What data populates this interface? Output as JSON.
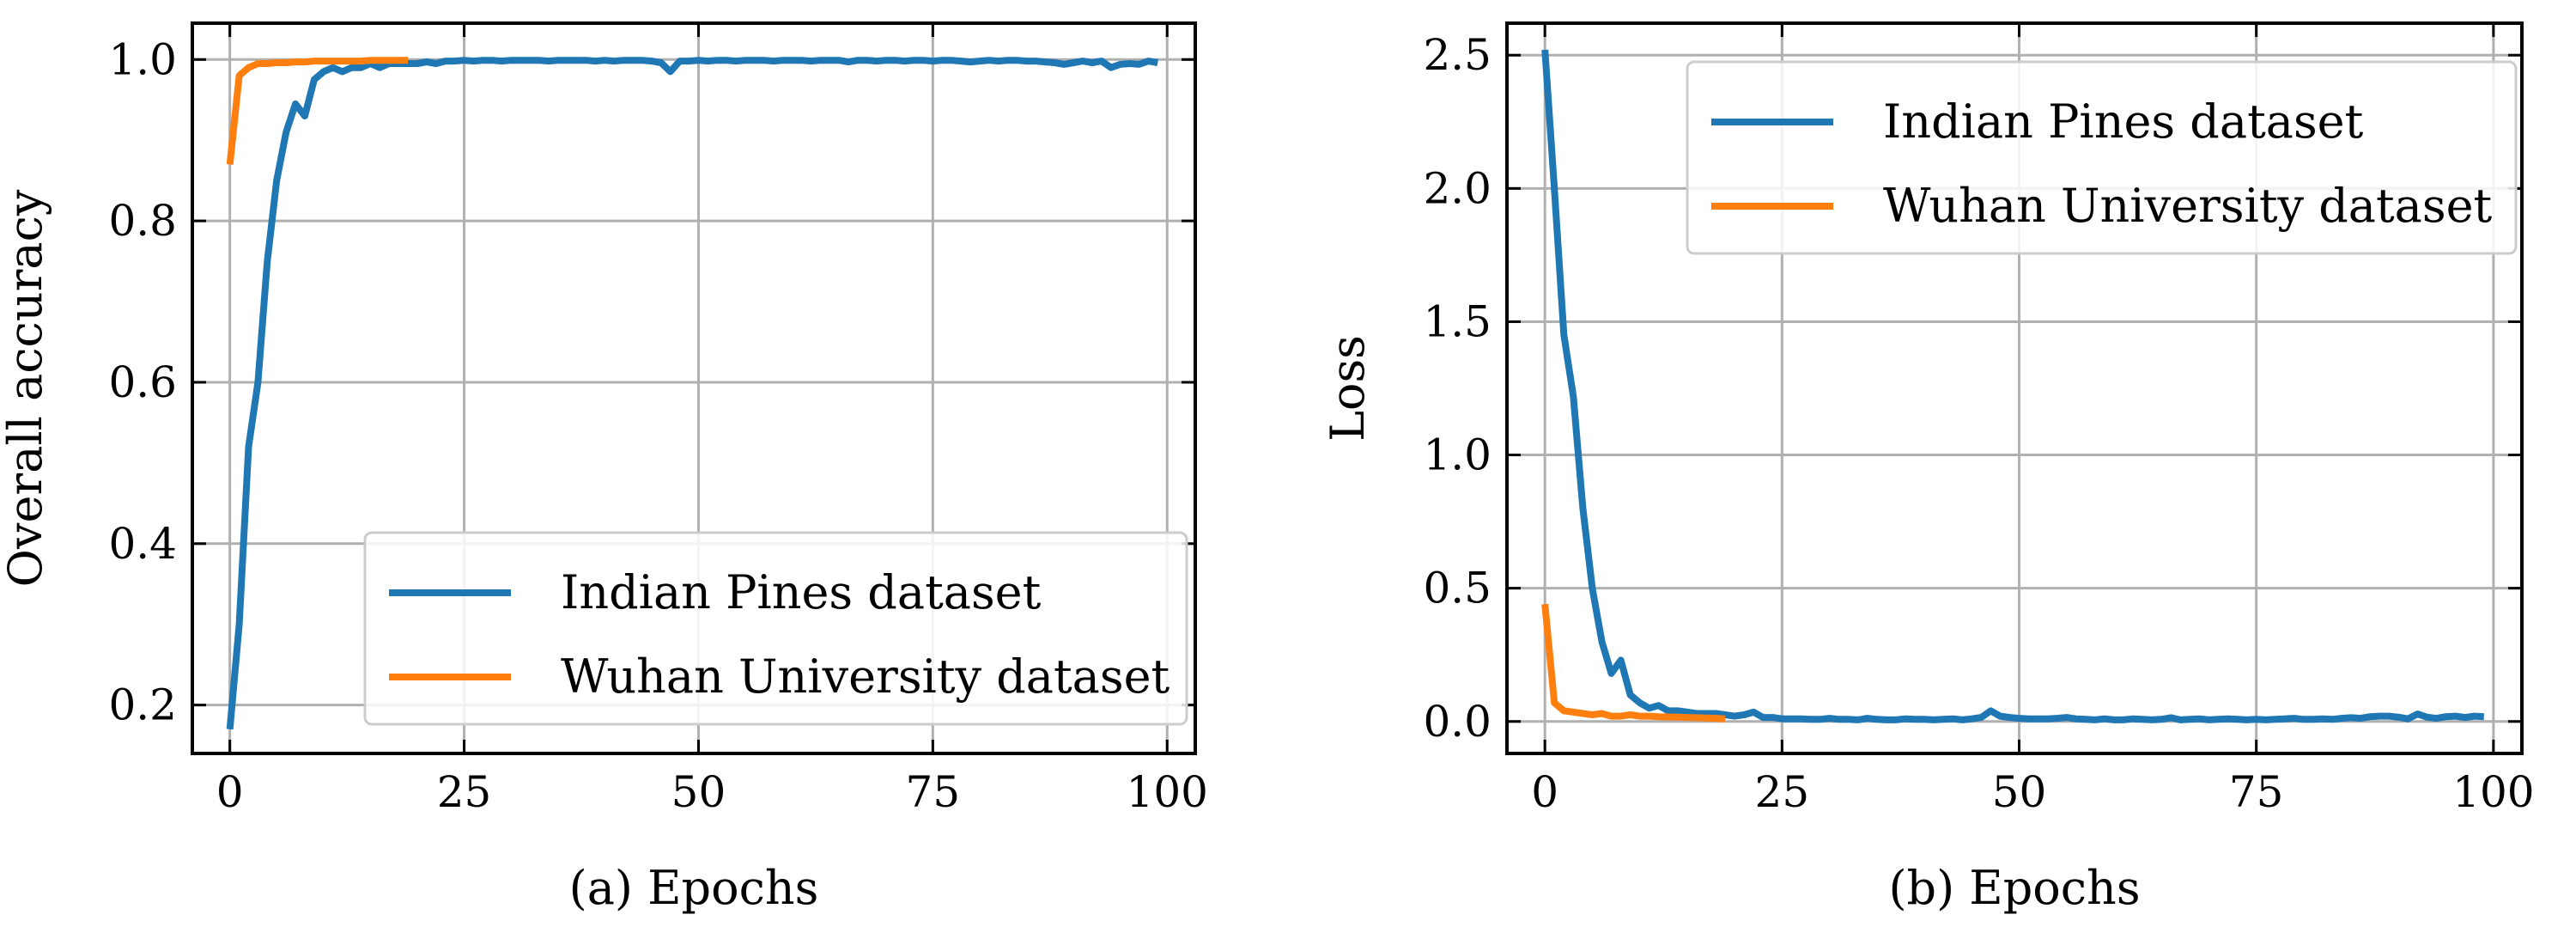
{
  "chart_data": [
    {
      "type": "line",
      "id": "a",
      "xlabel": "(a) Epochs",
      "ylabel": "Overall accuracy",
      "xlim": [
        -4,
        103
      ],
      "ylim": [
        0.14,
        1.045
      ],
      "xticks": [
        0,
        25,
        50,
        75,
        100
      ],
      "yticks": [
        0.2,
        0.4,
        0.6,
        0.8,
        1.0
      ],
      "xtick_labels": [
        "0",
        "25",
        "50",
        "75",
        "100"
      ],
      "ytick_labels": [
        "0.2",
        "0.4",
        "0.6",
        "0.8",
        "1.0"
      ],
      "grid": true,
      "legend_position": "lower-right",
      "series": [
        {
          "name": "Indian Pines dataset",
          "color": "#1f77b4",
          "x": [
            0,
            1,
            2,
            3,
            4,
            5,
            6,
            7,
            8,
            9,
            10,
            11,
            12,
            13,
            14,
            15,
            16,
            17,
            18,
            19,
            20,
            21,
            22,
            23,
            24,
            25,
            26,
            27,
            28,
            29,
            30,
            31,
            32,
            33,
            34,
            35,
            36,
            37,
            38,
            39,
            40,
            41,
            42,
            43,
            44,
            45,
            46,
            47,
            48,
            49,
            50,
            51,
            52,
            53,
            54,
            55,
            56,
            57,
            58,
            59,
            60,
            61,
            62,
            63,
            64,
            65,
            66,
            67,
            68,
            69,
            70,
            71,
            72,
            73,
            74,
            75,
            76,
            77,
            78,
            79,
            80,
            81,
            82,
            83,
            84,
            85,
            86,
            87,
            88,
            89,
            90,
            91,
            92,
            93,
            94,
            95,
            96,
            97,
            98,
            99
          ],
          "y": [
            0.17,
            0.3,
            0.52,
            0.6,
            0.75,
            0.85,
            0.91,
            0.945,
            0.93,
            0.975,
            0.985,
            0.99,
            0.985,
            0.99,
            0.99,
            0.995,
            0.99,
            0.995,
            0.995,
            0.995,
            0.995,
            0.997,
            0.995,
            0.998,
            0.998,
            0.999,
            0.998,
            0.999,
            0.999,
            0.998,
            0.999,
            0.999,
            0.999,
            0.999,
            0.998,
            0.999,
            0.999,
            0.999,
            0.999,
            0.998,
            0.999,
            0.998,
            0.999,
            0.999,
            0.999,
            0.998,
            0.996,
            0.985,
            0.998,
            0.998,
            0.999,
            0.998,
            0.999,
            0.999,
            0.998,
            0.999,
            0.999,
            0.999,
            0.998,
            0.999,
            0.999,
            0.999,
            0.998,
            0.999,
            0.999,
            0.999,
            0.997,
            0.999,
            0.999,
            0.998,
            0.999,
            0.999,
            0.998,
            0.999,
            0.999,
            0.998,
            0.999,
            0.999,
            0.998,
            0.997,
            0.998,
            0.999,
            0.998,
            0.999,
            0.999,
            0.998,
            0.998,
            0.997,
            0.996,
            0.994,
            0.996,
            0.998,
            0.996,
            0.998,
            0.99,
            0.994,
            0.995,
            0.994,
            0.998,
            0.996
          ]
        },
        {
          "name": "Wuhan University dataset",
          "color": "#ff7f0e",
          "x": [
            0,
            1,
            2,
            3,
            4,
            5,
            6,
            7,
            8,
            9,
            10,
            11,
            12,
            13,
            14,
            15,
            16,
            17,
            18,
            19
          ],
          "y": [
            0.87,
            0.98,
            0.99,
            0.995,
            0.995,
            0.996,
            0.996,
            0.997,
            0.997,
            0.998,
            0.998,
            0.998,
            0.998,
            0.998,
            0.998,
            0.999,
            0.999,
            0.999,
            0.999,
            0.999
          ]
        }
      ]
    },
    {
      "type": "line",
      "id": "b",
      "xlabel": "(b) Epochs",
      "ylabel": "Loss",
      "xlim": [
        -4,
        103
      ],
      "ylim": [
        -0.12,
        2.62
      ],
      "xticks": [
        0,
        25,
        50,
        75,
        100
      ],
      "yticks": [
        0.0,
        0.5,
        1.0,
        1.5,
        2.0,
        2.5
      ],
      "xtick_labels": [
        "0",
        "25",
        "50",
        "75",
        "100"
      ],
      "ytick_labels": [
        "0.0",
        "0.5",
        "1.0",
        "1.5",
        "2.0",
        "2.5"
      ],
      "grid": true,
      "legend_position": "upper-right",
      "series": [
        {
          "name": "Indian Pines dataset",
          "color": "#1f77b4",
          "x": [
            0,
            1,
            2,
            3,
            4,
            5,
            6,
            7,
            8,
            9,
            10,
            11,
            12,
            13,
            14,
            15,
            16,
            17,
            18,
            19,
            20,
            21,
            22,
            23,
            24,
            25,
            26,
            27,
            28,
            29,
            30,
            31,
            32,
            33,
            34,
            35,
            36,
            37,
            38,
            39,
            40,
            41,
            42,
            43,
            44,
            45,
            46,
            47,
            48,
            49,
            50,
            51,
            52,
            53,
            54,
            55,
            56,
            57,
            58,
            59,
            60,
            61,
            62,
            63,
            64,
            65,
            66,
            67,
            68,
            69,
            70,
            71,
            72,
            73,
            74,
            75,
            76,
            77,
            78,
            79,
            80,
            81,
            82,
            83,
            84,
            85,
            86,
            87,
            88,
            89,
            90,
            91,
            92,
            93,
            94,
            95,
            96,
            97,
            98,
            99
          ],
          "y": [
            2.52,
            2.0,
            1.45,
            1.22,
            0.8,
            0.5,
            0.3,
            0.18,
            0.23,
            0.1,
            0.07,
            0.05,
            0.06,
            0.04,
            0.04,
            0.035,
            0.03,
            0.03,
            0.03,
            0.025,
            0.02,
            0.025,
            0.035,
            0.015,
            0.015,
            0.01,
            0.01,
            0.01,
            0.008,
            0.008,
            0.012,
            0.008,
            0.008,
            0.006,
            0.012,
            0.008,
            0.006,
            0.006,
            0.01,
            0.008,
            0.008,
            0.006,
            0.008,
            0.01,
            0.006,
            0.01,
            0.015,
            0.04,
            0.02,
            0.015,
            0.012,
            0.01,
            0.01,
            0.01,
            0.012,
            0.015,
            0.01,
            0.008,
            0.006,
            0.01,
            0.006,
            0.006,
            0.01,
            0.008,
            0.006,
            0.008,
            0.014,
            0.006,
            0.008,
            0.01,
            0.006,
            0.008,
            0.01,
            0.008,
            0.006,
            0.008,
            0.006,
            0.008,
            0.01,
            0.012,
            0.008,
            0.008,
            0.01,
            0.008,
            0.012,
            0.014,
            0.012,
            0.018,
            0.02,
            0.02,
            0.016,
            0.01,
            0.028,
            0.016,
            0.012,
            0.018,
            0.02,
            0.015,
            0.02,
            0.018
          ]
        },
        {
          "name": "Wuhan University dataset",
          "color": "#ff7f0e",
          "x": [
            0,
            1,
            2,
            3,
            4,
            5,
            6,
            7,
            8,
            9,
            10,
            11,
            12,
            13,
            14,
            15,
            16,
            17,
            18,
            19
          ],
          "y": [
            0.44,
            0.07,
            0.04,
            0.035,
            0.03,
            0.025,
            0.03,
            0.02,
            0.02,
            0.025,
            0.02,
            0.02,
            0.018,
            0.017,
            0.016,
            0.015,
            0.014,
            0.013,
            0.012,
            0.01
          ]
        }
      ]
    }
  ]
}
